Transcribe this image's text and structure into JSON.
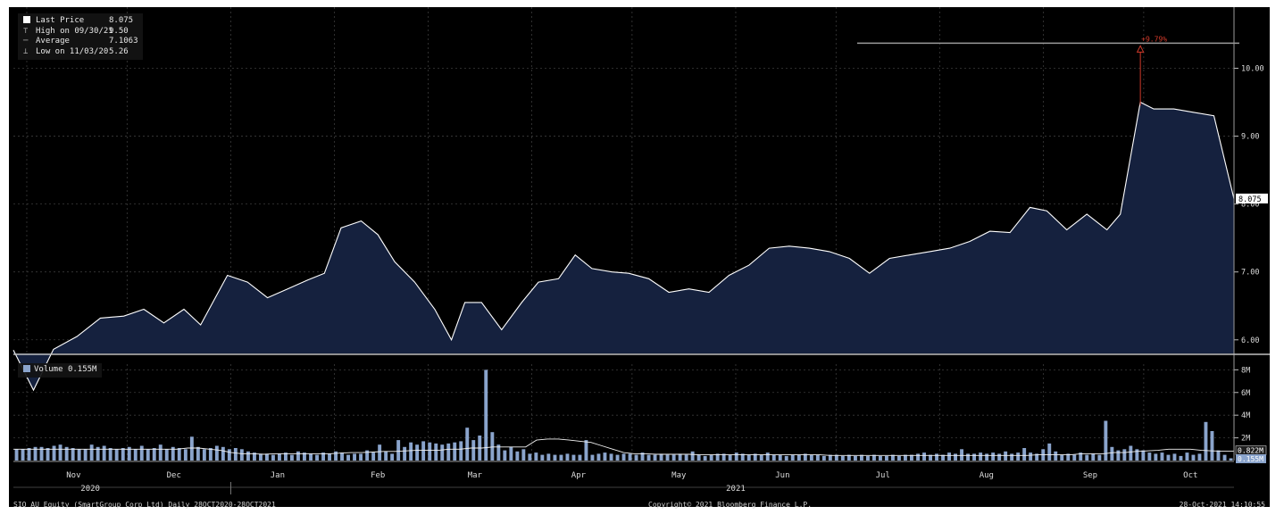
{
  "legend": {
    "last_price_label": "Last Price",
    "last_price_value": "8.075",
    "high_label": "High on 09/30/21",
    "high_value": "9.50",
    "average_label": "Average",
    "average_value": "7.1063",
    "low_label": "Low on 11/03/20",
    "low_value": "5.26"
  },
  "volume_legend": {
    "label": "Volume",
    "value": "0.155M"
  },
  "annotation": {
    "pct_label": "+9.79%",
    "level": 10.37
  },
  "last_price_tag": "8.075",
  "footer": {
    "left": "SIQ AU Equity (SmartGroup Corp Ltd)  Daily 28OCT2020-28OCT2021",
    "center": "Copyright© 2021 Bloomberg Finance L.P.",
    "right": "28-Oct-2021 14:10:55"
  },
  "colors": {
    "price_line": "#ffffff",
    "price_fill": "#15213e",
    "volume_bar": "#8aa4cc",
    "annotation": "#d23a2a",
    "background": "#000000"
  },
  "chart_data": [
    {
      "type": "area",
      "title": "SIQ AU Equity (SmartGroup Corp Ltd)",
      "ylabel": "Price",
      "ylim": [
        5.8,
        10.9
      ],
      "y_ticks": [
        "6.00",
        "7.00",
        "8.00",
        "9.00",
        "10.00"
      ],
      "x_ticks": [
        "Nov",
        "Dec",
        "Jan",
        "Feb",
        "Mar",
        "Apr",
        "May",
        "Jun",
        "Jul",
        "Aug",
        "Sep",
        "Oct"
      ],
      "year_labels": [
        "2020",
        "2021"
      ],
      "grid": true,
      "legend_placement": "top-left",
      "x": [
        "2020-10-28",
        "2020-11-03",
        "2020-11-09",
        "2020-11-16",
        "2020-11-23",
        "2020-11-30",
        "2020-12-06",
        "2020-12-12",
        "2020-12-18",
        "2020-12-23",
        "2020-12-31",
        "2021-01-06",
        "2021-01-12",
        "2021-01-18",
        "2021-01-24",
        "2021-01-29",
        "2021-02-03",
        "2021-02-09",
        "2021-02-14",
        "2021-02-19",
        "2021-02-25",
        "2021-03-03",
        "2021-03-08",
        "2021-03-12",
        "2021-03-17",
        "2021-03-23",
        "2021-03-29",
        "2021-04-03",
        "2021-04-09",
        "2021-04-14",
        "2021-04-19",
        "2021-04-25",
        "2021-04-30",
        "2021-05-06",
        "2021-05-12",
        "2021-05-18",
        "2021-05-24",
        "2021-05-30",
        "2021-06-05",
        "2021-06-11",
        "2021-06-17",
        "2021-06-23",
        "2021-06-29",
        "2021-07-05",
        "2021-07-11",
        "2021-07-17",
        "2021-07-23",
        "2021-07-29",
        "2021-08-04",
        "2021-08-10",
        "2021-08-16",
        "2021-08-22",
        "2021-08-28",
        "2021-09-02",
        "2021-09-08",
        "2021-09-14",
        "2021-09-20",
        "2021-09-24",
        "2021-09-30",
        "2021-10-04",
        "2021-10-10",
        "2021-10-16",
        "2021-10-22",
        "2021-10-28"
      ],
      "series": [
        {
          "name": "Last Price",
          "values": [
            5.85,
            5.26,
            5.86,
            6.05,
            6.32,
            6.35,
            6.45,
            6.25,
            6.45,
            6.22,
            6.95,
            6.85,
            6.62,
            6.75,
            6.88,
            6.98,
            7.65,
            7.75,
            7.55,
            7.15,
            6.85,
            6.45,
            6.0,
            6.55,
            6.55,
            6.15,
            6.55,
            6.85,
            6.9,
            7.25,
            7.05,
            7.0,
            6.98,
            6.9,
            6.7,
            6.75,
            6.7,
            6.95,
            7.1,
            7.35,
            7.38,
            7.35,
            7.3,
            7.2,
            6.98,
            7.2,
            7.25,
            7.3,
            7.35,
            7.45,
            7.6,
            7.58,
            7.95,
            7.9,
            7.62,
            7.85,
            7.62,
            7.85,
            9.5,
            9.4,
            9.4,
            9.35,
            9.3,
            8.075
          ]
        }
      ]
    },
    {
      "type": "bar",
      "title": "Volume",
      "ylabel": "Volume",
      "ylim": [
        0,
        8.5
      ],
      "y_ticks": [
        "2M",
        "4M",
        "6M",
        "8M"
      ],
      "overlay_label": "0.822M",
      "series": [
        {
          "name": "Volume",
          "values": [
            1.0,
            1.0,
            1.1,
            1.2,
            1.2,
            1.1,
            1.3,
            1.4,
            1.2,
            1.1,
            1.0,
            1.0,
            1.4,
            1.2,
            1.3,
            1.1,
            1.0,
            1.1,
            1.2,
            1.0,
            1.3,
            1.0,
            1.1,
            1.4,
            1.0,
            1.2,
            1.1,
            1.0,
            2.1,
            1.2,
            1.0,
            1.1,
            1.3,
            1.2,
            1.0,
            1.1,
            1.0,
            0.8,
            0.7,
            0.6,
            0.6,
            0.5,
            0.6,
            0.7,
            0.5,
            0.8,
            0.7,
            0.6,
            0.5,
            0.7,
            0.6,
            0.8,
            0.7,
            0.5,
            0.6,
            0.6,
            0.9,
            0.7,
            1.4,
            0.8,
            0.6,
            1.8,
            1.2,
            1.6,
            1.4,
            1.7,
            1.6,
            1.5,
            1.4,
            1.5,
            1.6,
            1.7,
            2.9,
            1.8,
            2.2,
            8.0,
            2.5,
            1.4,
            0.9,
            1.2,
            0.8,
            1.0,
            0.6,
            0.7,
            0.5,
            0.6,
            0.5,
            0.5,
            0.6,
            0.5,
            0.5,
            1.8,
            0.5,
            0.6,
            0.7,
            0.6,
            0.5,
            0.6,
            0.6,
            0.5,
            0.7,
            0.5,
            0.5,
            0.6,
            0.5,
            0.5,
            0.6,
            0.5,
            0.8,
            0.5,
            0.4,
            0.5,
            0.6,
            0.6,
            0.5,
            0.7,
            0.6,
            0.5,
            0.6,
            0.5,
            0.7,
            0.5,
            0.5,
            0.4,
            0.5,
            0.5,
            0.6,
            0.5,
            0.5,
            0.4,
            0.5,
            0.5,
            0.4,
            0.5,
            0.4,
            0.5,
            0.4,
            0.5,
            0.4,
            0.4,
            0.5,
            0.4,
            0.5,
            0.5,
            0.6,
            0.7,
            0.5,
            0.6,
            0.5,
            0.7,
            0.6,
            1.0,
            0.6,
            0.6,
            0.7,
            0.6,
            0.7,
            0.6,
            0.8,
            0.6,
            0.7,
            1.1,
            0.7,
            0.6,
            1.0,
            1.5,
            0.8,
            0.5,
            0.6,
            0.5,
            0.7,
            0.5,
            0.6,
            0.5,
            3.5,
            1.2,
            0.9,
            1.0,
            1.3,
            1.0,
            0.9,
            0.7,
            0.6,
            0.7,
            0.5,
            0.6,
            0.4,
            0.7,
            0.5,
            0.6,
            3.4,
            2.6,
            0.9,
            0.5,
            0.2
          ]
        },
        {
          "name": "Average",
          "values": [
            1.0,
            1.0,
            1.0,
            1.0,
            1.0,
            1.0,
            1.0,
            1.0,
            1.0,
            1.0,
            1.0,
            1.0,
            1.0,
            1.0,
            1.0,
            1.0,
            1.1,
            1.1,
            1.0,
            0.9,
            0.7,
            0.6,
            0.6,
            0.55,
            0.6,
            0.6,
            0.6,
            0.6,
            0.6,
            0.6,
            0.65,
            0.7,
            0.7,
            0.75,
            0.8,
            0.8,
            0.85,
            0.9,
            0.9,
            0.9,
            1.0,
            1.0,
            1.1,
            1.1,
            1.2,
            1.2,
            1.2,
            1.2,
            1.8,
            1.9,
            1.9,
            1.8,
            1.7,
            1.6,
            1.3,
            1.0,
            0.7,
            0.6,
            0.6,
            0.55,
            0.55,
            0.55,
            0.55,
            0.5,
            0.5,
            0.5,
            0.5,
            0.5,
            0.5,
            0.5,
            0.5,
            0.5,
            0.5,
            0.5,
            0.5,
            0.45,
            0.45,
            0.45,
            0.45,
            0.45,
            0.45,
            0.45,
            0.45,
            0.45,
            0.45,
            0.45,
            0.45,
            0.45,
            0.45,
            0.45,
            0.45,
            0.45,
            0.45,
            0.45,
            0.5,
            0.5,
            0.5,
            0.5,
            0.6,
            0.6,
            0.6,
            0.7,
            0.7,
            0.8,
            0.85,
            0.9,
            1.0,
            1.0,
            1.0,
            0.9,
            0.85,
            0.82,
            0.822
          ]
        }
      ]
    }
  ]
}
